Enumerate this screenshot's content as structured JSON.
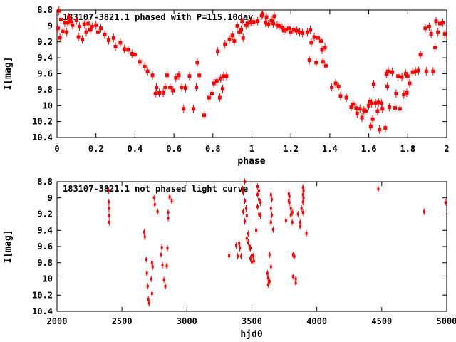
{
  "figure": {
    "background": "#ffffff",
    "axis_color": "#000000",
    "text_color": "#000000",
    "marker_color": "#ff0000",
    "marker_style": "filled-square-with-vertical-errorbar"
  },
  "chart_data": [
    {
      "type": "scatter",
      "title": "183107-3821.1 phased with P=115.10day",
      "xlabel": "phase",
      "ylabel": "I[mag]",
      "xlim": [
        0,
        2
      ],
      "ylim": [
        8.8,
        10.4
      ],
      "y_inverted": true,
      "grid": false,
      "legend": "none",
      "xtick_labels": [
        "0",
        "0.2",
        "0.4",
        "0.6",
        "0.8",
        "1",
        "1.2",
        "1.4",
        "1.6",
        "1.8",
        "2"
      ],
      "ytick_labels": [
        "8.8",
        "9",
        "9.2",
        "9.4",
        "9.6",
        "9.8",
        "10",
        "10.2",
        "10.4"
      ],
      "points": [
        [
          0.005,
          9.03
        ],
        [
          0.01,
          8.81
        ],
        [
          0.015,
          9.15
        ],
        [
          0.02,
          8.92
        ],
        [
          0.03,
          9.07
        ],
        [
          0.04,
          8.96
        ],
        [
          0.05,
          9.08
        ],
        [
          0.055,
          8.96
        ],
        [
          0.06,
          8.89
        ],
        [
          0.07,
          8.94
        ],
        [
          0.08,
          8.99
        ],
        [
          0.1,
          8.93
        ],
        [
          0.11,
          9.14
        ],
        [
          0.115,
          9.01
        ],
        [
          0.13,
          9.17
        ],
        [
          0.14,
          8.98
        ],
        [
          0.15,
          9.08
        ],
        [
          0.16,
          8.97
        ],
        [
          0.17,
          9.05
        ],
        [
          0.18,
          9.01
        ],
        [
          0.2,
          8.99
        ],
        [
          0.21,
          9.08
        ],
        [
          0.225,
          9.03
        ],
        [
          0.245,
          9.11
        ],
        [
          0.265,
          9.18
        ],
        [
          0.29,
          9.15
        ],
        [
          0.3,
          9.26
        ],
        [
          0.325,
          9.21
        ],
        [
          0.345,
          9.29
        ],
        [
          0.365,
          9.3
        ],
        [
          0.385,
          9.35
        ],
        [
          0.4,
          9.36
        ],
        [
          0.425,
          9.45
        ],
        [
          0.45,
          9.51
        ],
        [
          0.465,
          9.57
        ],
        [
          0.49,
          9.62
        ],
        [
          0.505,
          9.85
        ],
        [
          0.51,
          9.77
        ],
        [
          0.525,
          9.84
        ],
        [
          0.545,
          9.84
        ],
        [
          0.555,
          9.77
        ],
        [
          0.565,
          9.62
        ],
        [
          0.58,
          9.77
        ],
        [
          0.595,
          9.81
        ],
        [
          0.61,
          9.65
        ],
        [
          0.625,
          9.62
        ],
        [
          0.64,
          9.77
        ],
        [
          0.65,
          10.04
        ],
        [
          0.66,
          9.78
        ],
        [
          0.68,
          9.63
        ],
        [
          0.7,
          10.04
        ],
        [
          0.715,
          9.77
        ],
        [
          0.72,
          9.46
        ],
        [
          0.73,
          9.62
        ],
        [
          0.755,
          10.12
        ],
        [
          0.78,
          9.9
        ],
        [
          0.795,
          9.85
        ],
        [
          0.805,
          9.72
        ],
        [
          0.82,
          9.69
        ],
        [
          0.825,
          9.32
        ],
        [
          0.835,
          9.9
        ],
        [
          0.84,
          9.66
        ],
        [
          0.85,
          9.79
        ],
        [
          0.855,
          9.63
        ],
        [
          0.862,
          9.23
        ],
        [
          0.87,
          9.63
        ],
        [
          0.885,
          9.17
        ],
        [
          0.9,
          9.12
        ],
        [
          0.91,
          9.19
        ],
        [
          0.925,
          9.0
        ],
        [
          0.935,
          9.08
        ],
        [
          0.945,
          9.05
        ],
        [
          0.95,
          8.94
        ],
        [
          0.955,
          9.15
        ],
        [
          0.97,
          8.99
        ],
        [
          0.98,
          8.97
        ],
        [
          0.995,
          8.95
        ],
        [
          1.01,
          8.95
        ],
        [
          1.03,
          8.94
        ],
        [
          1.05,
          8.87
        ],
        [
          1.055,
          8.85
        ],
        [
          1.07,
          8.96
        ],
        [
          1.075,
          8.89
        ],
        [
          1.085,
          8.98
        ],
        [
          1.1,
          8.93
        ],
        [
          1.11,
          8.97
        ],
        [
          1.115,
          8.88
        ],
        [
          1.13,
          8.99
        ],
        [
          1.14,
          9.0
        ],
        [
          1.155,
          9.02
        ],
        [
          1.165,
          9.06
        ],
        [
          1.175,
          9.05
        ],
        [
          1.19,
          9.03
        ],
        [
          1.2,
          9.08
        ],
        [
          1.215,
          9.05
        ],
        [
          1.23,
          9.06
        ],
        [
          1.245,
          9.08
        ],
        [
          1.26,
          9.09
        ],
        [
          1.285,
          9.08
        ],
        [
          1.295,
          9.43
        ],
        [
          1.3,
          9.05
        ],
        [
          1.305,
          9.21
        ],
        [
          1.32,
          9.14
        ],
        [
          1.33,
          9.46
        ],
        [
          1.34,
          9.15
        ],
        [
          1.355,
          9.19
        ],
        [
          1.36,
          9.3
        ],
        [
          1.365,
          9.45
        ],
        [
          1.375,
          9.27
        ],
        [
          1.38,
          9.5
        ],
        [
          1.41,
          9.77
        ],
        [
          1.43,
          9.72
        ],
        [
          1.445,
          9.76
        ],
        [
          1.455,
          9.88
        ],
        [
          1.485,
          9.9
        ],
        [
          1.51,
          10.02
        ],
        [
          1.52,
          9.98
        ],
        [
          1.535,
          10.03
        ],
        [
          1.54,
          10.1
        ],
        [
          1.555,
          10.04
        ],
        [
          1.565,
          10.15
        ],
        [
          1.575,
          10.06
        ],
        [
          1.585,
          10.07
        ],
        [
          1.6,
          10.0
        ],
        [
          1.605,
          9.95
        ],
        [
          1.61,
          10.26
        ],
        [
          1.615,
          9.97
        ],
        [
          1.62,
          10.17
        ],
        [
          1.625,
          9.73
        ],
        [
          1.635,
          9.97
        ],
        [
          1.645,
          10.07
        ],
        [
          1.65,
          9.96
        ],
        [
          1.655,
          10.3
        ],
        [
          1.665,
          9.97
        ],
        [
          1.67,
          10.04
        ],
        [
          1.685,
          10.28
        ],
        [
          1.69,
          9.6
        ],
        [
          1.695,
          9.76
        ],
        [
          1.7,
          9.57
        ],
        [
          1.705,
          10.02
        ],
        [
          1.72,
          9.58
        ],
        [
          1.735,
          10.03
        ],
        [
          1.74,
          9.85
        ],
        [
          1.75,
          9.63
        ],
        [
          1.76,
          10.04
        ],
        [
          1.77,
          9.64
        ],
        [
          1.78,
          9.86
        ],
        [
          1.79,
          9.6
        ],
        [
          1.795,
          9.84
        ],
        [
          1.8,
          9.63
        ],
        [
          1.81,
          9.72
        ],
        [
          1.825,
          9.58
        ],
        [
          1.84,
          9.57
        ],
        [
          1.855,
          9.56
        ],
        [
          1.865,
          9.36
        ],
        [
          1.89,
          9.03
        ],
        [
          1.895,
          9.57
        ],
        [
          1.91,
          9.01
        ],
        [
          1.92,
          9.1
        ],
        [
          1.93,
          9.57
        ],
        [
          1.94,
          9.27
        ],
        [
          1.945,
          8.94
        ],
        [
          1.955,
          9.08
        ],
        [
          1.965,
          8.97
        ],
        [
          1.98,
          8.96
        ],
        [
          1.99,
          9.1
        ]
      ]
    },
    {
      "type": "scatter",
      "title": "183107-3821.1 not phased light curve",
      "xlabel": "hjd0",
      "ylabel": "I[mag]",
      "xlim": [
        2000,
        5000
      ],
      "ylim": [
        8.8,
        10.4
      ],
      "y_inverted": true,
      "grid": false,
      "legend": "none",
      "xtick_labels": [
        "2000",
        "2500",
        "3000",
        "3500",
        "4000",
        "4500",
        "5000"
      ],
      "ytick_labels": [
        "8.8",
        "9",
        "9.2",
        "9.4",
        "9.6",
        "9.8",
        "10",
        "10.2",
        "10.4"
      ],
      "points": [
        [
          2398,
          8.91
        ],
        [
          2399,
          9.05
        ],
        [
          2400,
          9.13
        ],
        [
          2401,
          9.22
        ],
        [
          2402,
          9.3
        ],
        [
          2671,
          9.42
        ],
        [
          2676,
          9.48
        ],
        [
          2687,
          9.76
        ],
        [
          2692,
          9.93
        ],
        [
          2698,
          10.09
        ],
        [
          2703,
          10.25
        ],
        [
          2709,
          10.3
        ],
        [
          2725,
          10.0
        ],
        [
          2731,
          9.8
        ],
        [
          2731,
          10.18
        ],
        [
          2736,
          9.85
        ],
        [
          2747,
          9.0
        ],
        [
          2753,
          9.08
        ],
        [
          2774,
          9.17
        ],
        [
          2801,
          9.7
        ],
        [
          2807,
          9.61
        ],
        [
          2812,
          9.83
        ],
        [
          2823,
          10.01
        ],
        [
          2834,
          10.09
        ],
        [
          2845,
          9.84
        ],
        [
          2850,
          9.62
        ],
        [
          2856,
          9.18
        ],
        [
          2856,
          9.25
        ],
        [
          2867,
          8.99
        ],
        [
          2883,
          9.04
        ],
        [
          3325,
          9.71
        ],
        [
          3380,
          9.59
        ],
        [
          3391,
          9.72
        ],
        [
          3402,
          9.56
        ],
        [
          3407,
          9.62
        ],
        [
          3418,
          9.72
        ],
        [
          3429,
          8.89
        ],
        [
          3434,
          8.93
        ],
        [
          3434,
          9.17
        ],
        [
          3445,
          8.8
        ],
        [
          3445,
          9.04
        ],
        [
          3445,
          9.29
        ],
        [
          3456,
          9.13
        ],
        [
          3461,
          9.22
        ],
        [
          3461,
          9.5
        ],
        [
          3472,
          9.44
        ],
        [
          3472,
          9.55
        ],
        [
          3483,
          9.61
        ],
        [
          3489,
          9.62
        ],
        [
          3489,
          9.75
        ],
        [
          3500,
          9.71
        ],
        [
          3500,
          9.79
        ],
        [
          3511,
          9.72
        ],
        [
          3516,
          9.78
        ],
        [
          3533,
          9.4
        ],
        [
          3544,
          8.86
        ],
        [
          3544,
          8.96
        ],
        [
          3544,
          9.11
        ],
        [
          3555,
          8.91
        ],
        [
          3555,
          9.02
        ],
        [
          3555,
          9.2
        ],
        [
          3566,
          9.06
        ],
        [
          3566,
          9.22
        ],
        [
          3620,
          9.93
        ],
        [
          3625,
          9.99
        ],
        [
          3625,
          10.07
        ],
        [
          3636,
          9.7
        ],
        [
          3636,
          10.03
        ],
        [
          3647,
          8.96
        ],
        [
          3647,
          9.13
        ],
        [
          3647,
          9.3
        ],
        [
          3647,
          9.85
        ],
        [
          3653,
          9.02
        ],
        [
          3653,
          9.21
        ],
        [
          3664,
          9.39
        ],
        [
          3762,
          9.28
        ],
        [
          3784,
          8.95
        ],
        [
          3784,
          9.04
        ],
        [
          3789,
          8.98
        ],
        [
          3789,
          9.06
        ],
        [
          3800,
          9.13
        ],
        [
          3800,
          9.21
        ],
        [
          3811,
          9.18
        ],
        [
          3811,
          9.3
        ],
        [
          3817,
          9.7
        ],
        [
          3817,
          9.97
        ],
        [
          3827,
          9.72
        ],
        [
          3838,
          10.0
        ],
        [
          3838,
          10.05
        ],
        [
          3855,
          9.2
        ],
        [
          3871,
          9.3
        ],
        [
          3871,
          9.35
        ],
        [
          3882,
          9.13
        ],
        [
          3893,
          8.87
        ],
        [
          3893,
          8.96
        ],
        [
          3893,
          9.05
        ],
        [
          3893,
          9.18
        ],
        [
          3898,
          8.91
        ],
        [
          3898,
          9.0
        ],
        [
          3920,
          9.44
        ],
        [
          4473,
          8.89
        ],
        [
          4826,
          9.17
        ],
        [
          4990,
          9.06
        ]
      ]
    }
  ]
}
